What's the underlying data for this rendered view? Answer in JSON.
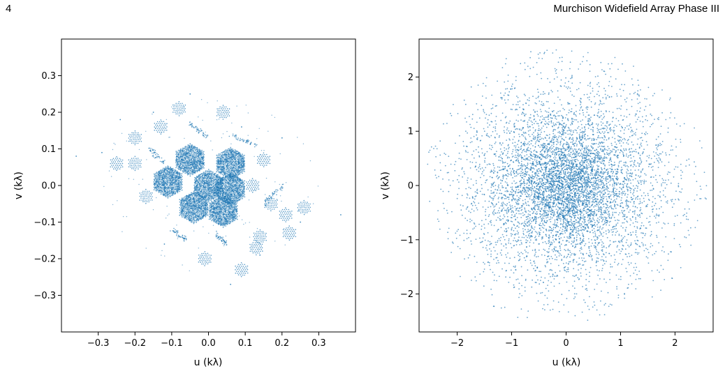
{
  "header": {
    "page_number": "4",
    "running_head": "Murchison Widefield Array Phase III"
  },
  "chart_data": [
    {
      "type": "scatter",
      "name": "uv-coverage-compact",
      "xlabel": "u (kλ)",
      "ylabel": "v (kλ)",
      "xlim": [
        -0.4,
        0.4
      ],
      "ylim": [
        -0.4,
        0.4
      ],
      "xticks": [
        -0.3,
        -0.2,
        -0.1,
        0.0,
        0.1,
        0.2,
        0.3
      ],
      "xtick_labels": [
        "−0.3",
        "−0.2",
        "−0.1",
        "0.0",
        "0.1",
        "0.2",
        "0.3"
      ],
      "yticks": [
        -0.3,
        -0.2,
        -0.1,
        0.0,
        0.1,
        0.2,
        0.3
      ],
      "ytick_labels": [
        "−0.3",
        "−0.2",
        "−0.1",
        "0.0",
        "0.1",
        "0.2",
        "0.3"
      ],
      "grid": false,
      "color": "#1f77b4",
      "dense_hexagon_centers": [
        [
          -0.05,
          0.07
        ],
        [
          -0.11,
          0.01
        ],
        [
          0.0,
          0.0
        ],
        [
          0.06,
          -0.01
        ],
        [
          0.04,
          -0.07
        ],
        [
          -0.04,
          -0.06
        ],
        [
          0.06,
          0.06
        ]
      ],
      "dense_hexagon_radius": 0.045,
      "sparse_hexagon_centers": [
        [
          -0.08,
          0.21
        ],
        [
          0.04,
          0.2
        ],
        [
          -0.13,
          0.16
        ],
        [
          -0.2,
          0.13
        ],
        [
          -0.2,
          0.06
        ],
        [
          -0.25,
          0.06
        ],
        [
          0.15,
          0.07
        ],
        [
          0.17,
          -0.05
        ],
        [
          0.21,
          -0.08
        ],
        [
          0.26,
          -0.06
        ],
        [
          0.14,
          -0.14
        ],
        [
          0.22,
          -0.13
        ],
        [
          0.13,
          -0.17
        ],
        [
          -0.01,
          -0.2
        ],
        [
          0.09,
          -0.23
        ],
        [
          -0.17,
          -0.03
        ],
        [
          0.12,
          0.0
        ]
      ],
      "sparse_hexagon_radius": 0.022,
      "streak_segments": [
        [
          -0.05,
          0.17,
          0.0,
          0.13
        ],
        [
          0.06,
          0.14,
          0.13,
          0.11
        ],
        [
          -0.16,
          0.1,
          -0.12,
          0.06
        ],
        [
          0.15,
          -0.05,
          0.2,
          0.0
        ],
        [
          -0.1,
          -0.12,
          -0.06,
          -0.15
        ],
        [
          0.02,
          -0.13,
          0.05,
          -0.16
        ]
      ],
      "outlier_points": [
        [
          -0.36,
          0.08
        ],
        [
          -0.29,
          0.09
        ],
        [
          0.36,
          -0.08
        ],
        [
          -0.24,
          0.18
        ],
        [
          0.25,
          -0.1
        ],
        [
          -0.15,
          0.2
        ],
        [
          0.14,
          -0.19
        ],
        [
          -0.12,
          -0.16
        ],
        [
          0.09,
          0.16
        ],
        [
          -0.05,
          0.25
        ],
        [
          0.06,
          -0.27
        ],
        [
          0.2,
          0.13
        ]
      ]
    },
    {
      "type": "scatter",
      "name": "uv-coverage-extended",
      "xlabel": "u (kλ)",
      "ylabel": "v (kλ)",
      "xlim": [
        -2.7,
        2.7
      ],
      "ylim": [
        -2.7,
        2.7
      ],
      "xticks": [
        -2,
        -1,
        0,
        1,
        2
      ],
      "xtick_labels": [
        "−2",
        "−1",
        "0",
        "1",
        "2"
      ],
      "yticks": [
        -2,
        -1,
        0,
        1,
        2
      ],
      "ytick_labels": [
        "−2",
        "−1",
        "0",
        "1",
        "2"
      ],
      "grid": false,
      "color": "#1f77b4",
      "distribution": {
        "center": [
          0.0,
          0.0
        ],
        "sigma": 0.95,
        "max_radius": 2.6,
        "dense_core_sigma": 0.5
      }
    }
  ]
}
